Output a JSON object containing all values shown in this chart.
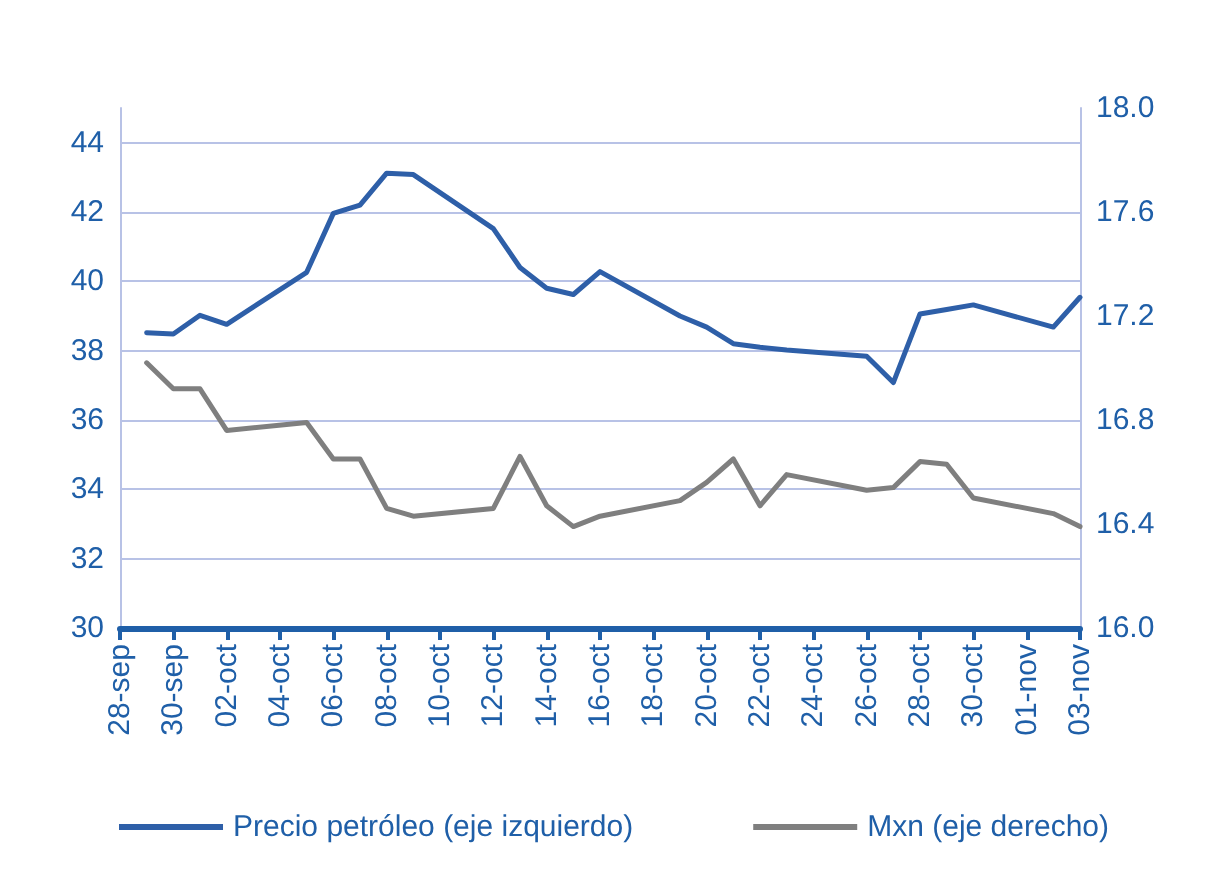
{
  "chart_data": {
    "type": "line",
    "x": [
      "--09-29",
      "--09-30",
      "--10-01",
      "--10-02",
      "--10-05",
      "--10-06",
      "--10-07",
      "--10-08",
      "--10-09",
      "--10-12",
      "--10-13",
      "--10-14",
      "--10-15",
      "--10-16",
      "--10-19",
      "--10-20",
      "--10-21",
      "--10-22",
      "--10-23",
      "--10-26",
      "--10-27",
      "--10-28",
      "--10-29",
      "--10-30",
      "--11-02",
      "--11-03"
    ],
    "series": [
      {
        "name": "Precio petróleo (eje izquierdo)",
        "color": "#2e5fa8",
        "values": [
          38.52,
          38.48,
          39.02,
          38.76,
          40.26,
          41.96,
          42.2,
          43.12,
          43.08,
          41.52,
          40.4,
          39.8,
          39.62,
          40.28,
          39.0,
          38.68,
          38.2,
          38.1,
          38.02,
          37.84,
          37.08,
          39.06,
          39.19,
          39.32,
          38.68,
          39.54
        ]
      },
      {
        "name": "Mxn (eje derecho)",
        "color": "#7f7f7f",
        "axis": "y2",
        "values": [
          17.02,
          16.92,
          16.92,
          16.76,
          16.79,
          16.65,
          16.65,
          16.46,
          16.43,
          16.46,
          16.66,
          16.47,
          16.39,
          16.43,
          16.49,
          16.56,
          16.65,
          16.47,
          16.59,
          16.53,
          16.54,
          16.64,
          16.63,
          16.5,
          16.44,
          16.39
        ]
      }
    ],
    "xlim": [
      "--09-28",
      "--11-03"
    ],
    "xticks": [
      {
        "value": "--09-28",
        "label": "28-sep"
      },
      {
        "value": "--09-30",
        "label": "30-sep"
      },
      {
        "value": "--10-02",
        "label": "02-oct"
      },
      {
        "value": "--10-04",
        "label": "04-oct"
      },
      {
        "value": "--10-06",
        "label": "06-oct"
      },
      {
        "value": "--10-08",
        "label": "08-oct"
      },
      {
        "value": "--10-10",
        "label": "10-oct"
      },
      {
        "value": "--10-12",
        "label": "12-oct"
      },
      {
        "value": "--10-14",
        "label": "14-oct"
      },
      {
        "value": "--10-16",
        "label": "16-oct"
      },
      {
        "value": "--10-18",
        "label": "18-oct"
      },
      {
        "value": "--10-20",
        "label": "20-oct"
      },
      {
        "value": "--10-22",
        "label": "22-oct"
      },
      {
        "value": "--10-24",
        "label": "24-oct"
      },
      {
        "value": "--10-26",
        "label": "26-oct"
      },
      {
        "value": "--10-28",
        "label": "28-oct"
      },
      {
        "value": "--10-30",
        "label": "30-oct"
      },
      {
        "value": "--11-01",
        "label": "01-nov"
      },
      {
        "value": "--11-03",
        "label": "03-nov"
      }
    ],
    "ylim": [
      30,
      45
    ],
    "yticks": [
      30,
      32,
      34,
      36,
      38,
      40,
      42,
      44
    ],
    "y2lim": [
      16,
      18
    ],
    "y2ticks": [
      {
        "value": 16,
        "label": "16.0"
      },
      {
        "value": 16.4,
        "label": "16.4"
      },
      {
        "value": 16.8,
        "label": "16.8"
      },
      {
        "value": 17.2,
        "label": "17.2"
      },
      {
        "value": 17.6,
        "label": "17.6"
      },
      {
        "value": 18,
        "label": "18.0"
      }
    ],
    "grid": "y",
    "legend": "bottom",
    "marker": "none",
    "line_style": "solid"
  }
}
